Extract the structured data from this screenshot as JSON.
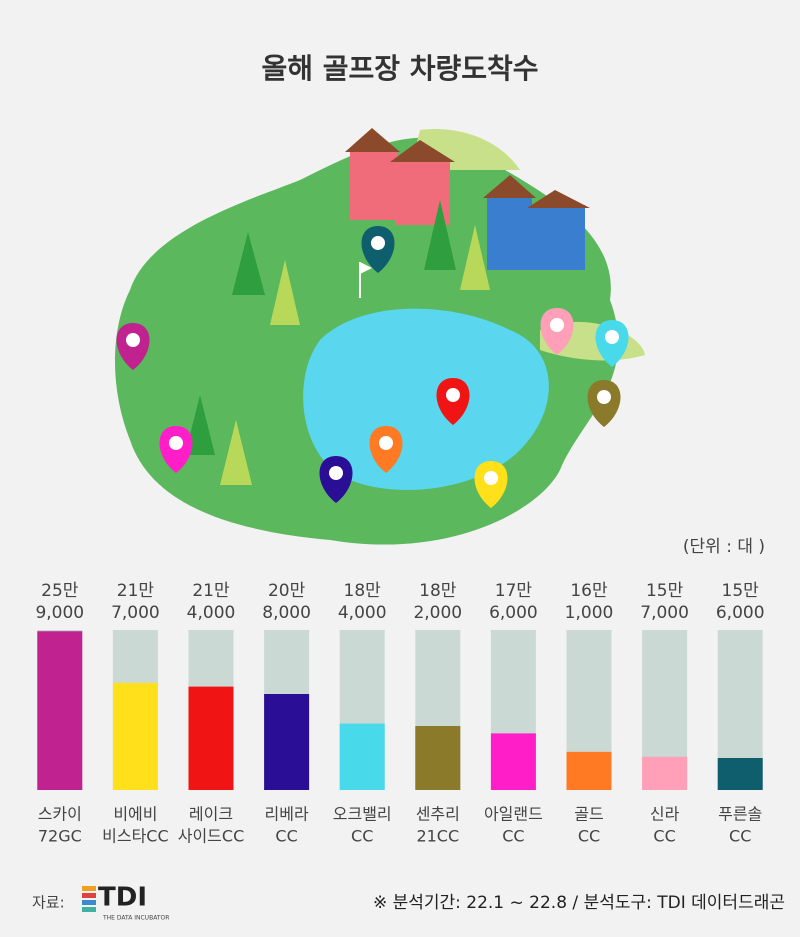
{
  "chart_data": {
    "type": "bar",
    "title": "올해 골프장 차량도착수",
    "unit_label": "(단위 : 대 )",
    "categories": [
      [
        "스카이",
        "72GC"
      ],
      [
        "비에비",
        "비스타CC"
      ],
      [
        "레이크",
        "사이드CC"
      ],
      [
        "리베라",
        "CC"
      ],
      [
        "오크밸리",
        "CC"
      ],
      [
        "센추리",
        "21CC"
      ],
      [
        "아일랜드",
        "CC"
      ],
      [
        "골드",
        "CC"
      ],
      [
        "신라",
        "CC"
      ],
      [
        "푸른솔",
        "CC"
      ]
    ],
    "values": [
      259000,
      217000,
      214000,
      208000,
      184000,
      182000,
      176000,
      161000,
      157000,
      156000
    ],
    "value_labels": [
      [
        "25만",
        "9,000"
      ],
      [
        "21만",
        "7,000"
      ],
      [
        "21만",
        "4,000"
      ],
      [
        "20만",
        "8,000"
      ],
      [
        "18만",
        "4,000"
      ],
      [
        "18만",
        "2,000"
      ],
      [
        "17만",
        "6,000"
      ],
      [
        "16만",
        "1,000"
      ],
      [
        "15만",
        "7,000"
      ],
      [
        "15만",
        "6,000"
      ]
    ],
    "colors": [
      "#c0238f",
      "#ffe01a",
      "#f01414",
      "#2a0f96",
      "#48d9ea",
      "#8a7a2a",
      "#ff1ec8",
      "#ff7a22",
      "#ff9fb8",
      "#0f5e6e"
    ],
    "track_color": "#cbd9d5",
    "ylim": [
      130000,
      260000
    ],
    "source_label": "자료:",
    "logo": "TDI",
    "logo_sub": "THE DATA INCUBATOR",
    "footnote": "※ 분석기간: 22.1 ~ 22.8 / 분석도구: TDI 데이터드래곤"
  }
}
